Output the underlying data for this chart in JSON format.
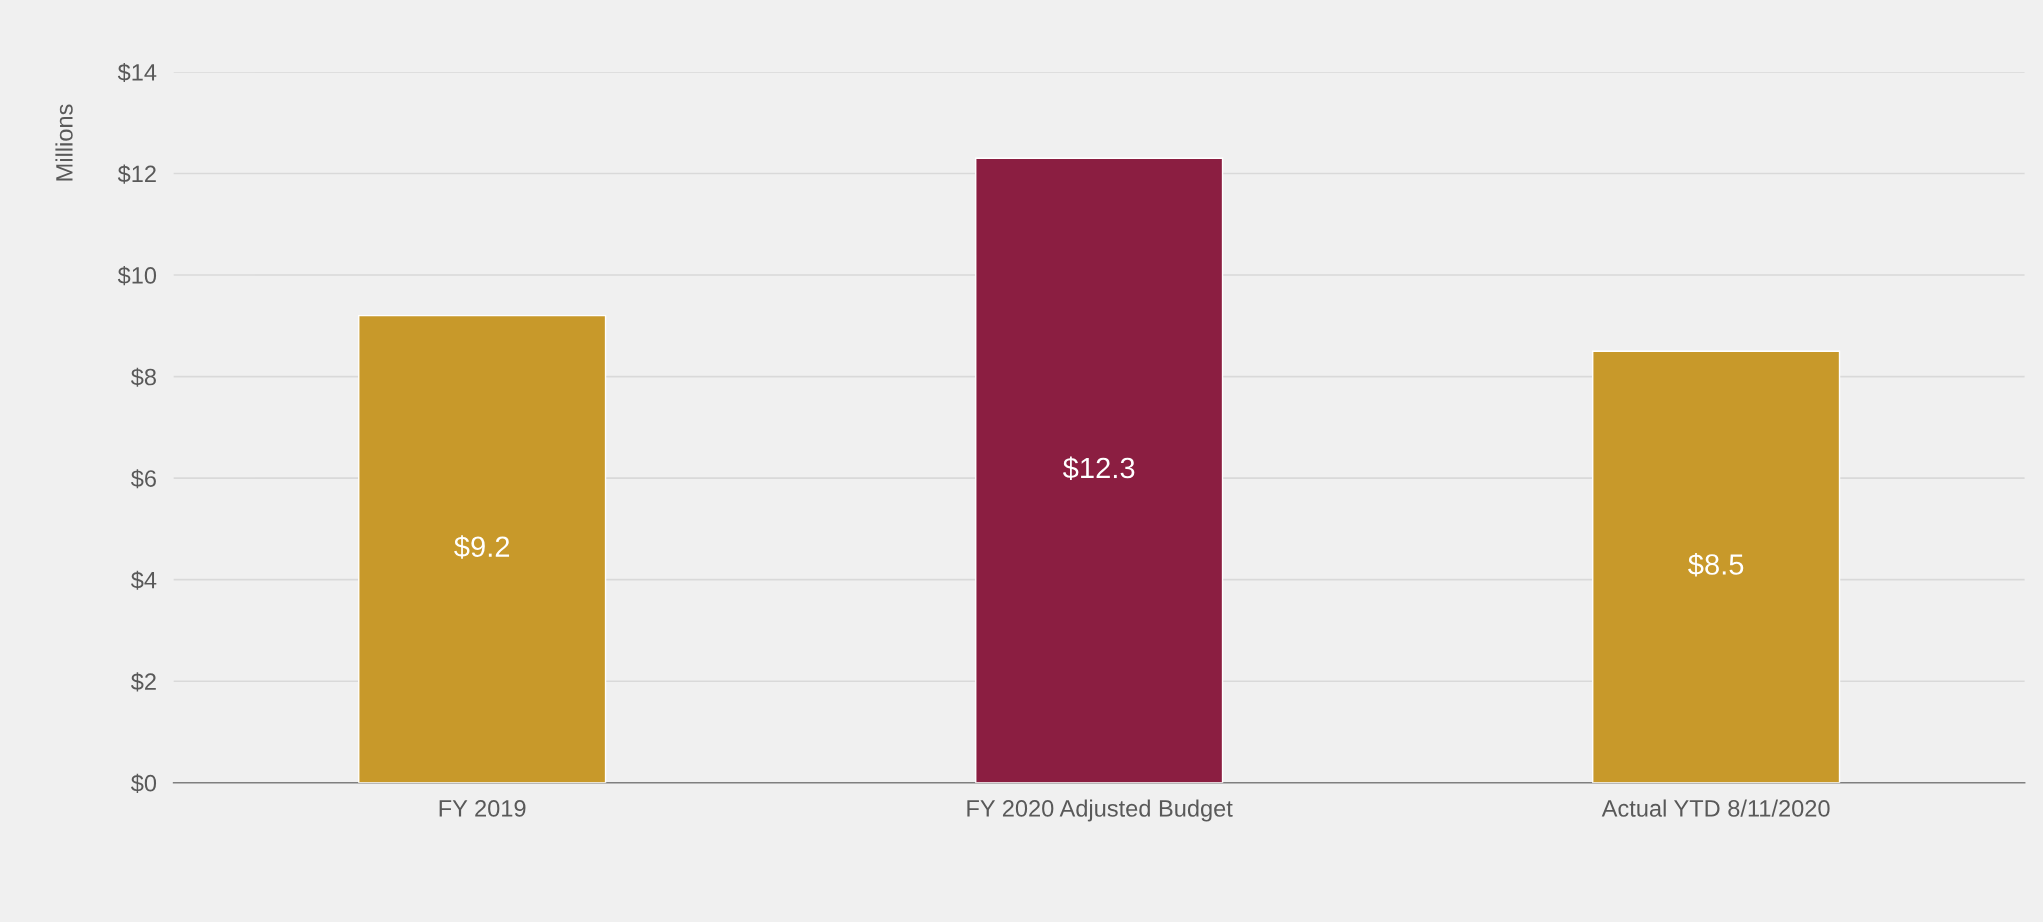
{
  "chart_data": {
    "type": "bar",
    "ylabel": "Millions",
    "categories": [
      "FY 2019",
      "FY 2020 Adjusted Budget",
      "Actual YTD 8/11/2020"
    ],
    "values": [
      9.2,
      12.3,
      8.5
    ],
    "colors": [
      "#c8992a",
      "#8b1e41",
      "#c8992a"
    ],
    "value_labels": [
      "$9.2",
      "$12.3",
      "$8.5"
    ],
    "ylim": [
      0,
      14
    ],
    "yticks": [
      {
        "value": 0,
        "label": "$0"
      },
      {
        "value": 2,
        "label": "$2"
      },
      {
        "value": 4,
        "label": "$4"
      },
      {
        "value": 6,
        "label": "$6"
      },
      {
        "value": 8,
        "label": "$8"
      },
      {
        "value": 10,
        "label": "$10"
      },
      {
        "value": 12,
        "label": "$12"
      },
      {
        "value": 14,
        "label": "$14"
      }
    ],
    "grid": "y",
    "legend": false
  }
}
